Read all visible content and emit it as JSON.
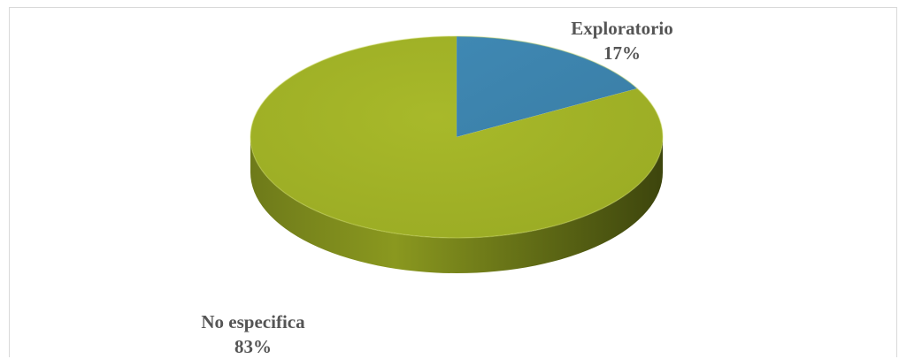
{
  "chart_data": {
    "type": "pie",
    "title": "",
    "style": "3d",
    "slices": [
      {
        "label": "Exploratorio",
        "value": 17,
        "display": "17%",
        "color": "#3f87b1"
      },
      {
        "label": "No especifica",
        "value": 83,
        "display": "83%",
        "color": "#a2b327"
      }
    ],
    "legend": "none",
    "labels": "outside"
  }
}
